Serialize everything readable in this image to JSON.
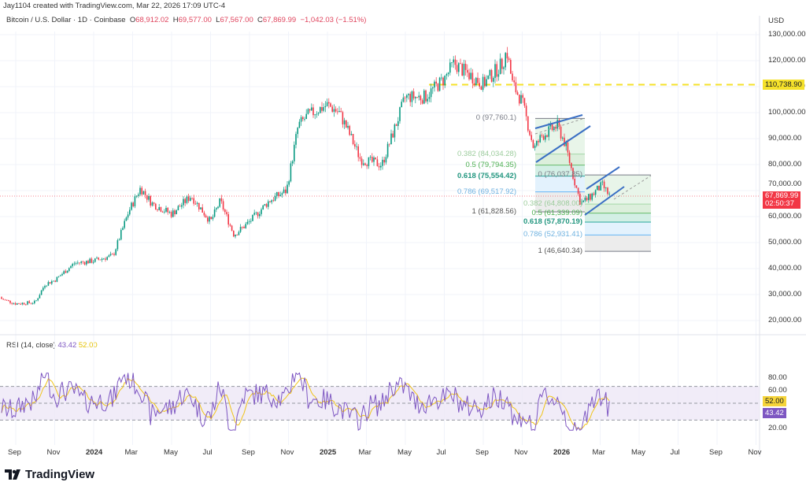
{
  "header": {
    "credit": "Jay1104 created with TradingView.com, Mar 22, 2026 17:09 UTC-4",
    "symbol": "Bitcoin / U.S. Dollar · 1D · Coinbase",
    "o_label": "O",
    "open": "68,912.02",
    "h_label": "H",
    "high": "69,577.00",
    "l_label": "L",
    "low": "67,567.00",
    "c_label": "C",
    "close": "67,869.99",
    "change": "−1,042.03 (−1.51%)"
  },
  "rsi_legend": {
    "label": "RSI (14, close)",
    "rsi": "43.42",
    "ma": "52.00"
  },
  "brand": "TradingView",
  "colors": {
    "up": "#089981",
    "down": "#f23645",
    "rsi": "#7e57c2",
    "rsi_ma": "#f0c419",
    "channel": "#3a6fc4",
    "hline": "#f5e12a"
  },
  "chart_data": {
    "type": "candlestick",
    "title": "Bitcoin / U.S. Dollar · 1D · Coinbase",
    "currency": "USD",
    "ylim": [
      20000,
      130000
    ],
    "y_ticks": [
      "130,000.00",
      "120,000.00",
      "110,000.00",
      "100,000.00",
      "90,000.00",
      "80,000.00",
      "70,000.00",
      "60,000.00",
      "50,000.00",
      "40,000.00",
      "30,000.00",
      "20,000.00"
    ],
    "y_tick_values": [
      130000,
      120000,
      110000,
      100000,
      90000,
      80000,
      70000,
      60000,
      50000,
      40000,
      30000,
      20000
    ],
    "x_ticks": [
      "Sep",
      "Nov",
      "2024",
      "Mar",
      "May",
      "Jul",
      "Sep",
      "Nov",
      "2025",
      "Mar",
      "May",
      "Jul",
      "Sep",
      "Nov",
      "2026",
      "Mar",
      "May",
      "Jul",
      "Sep",
      "Nov"
    ],
    "x_tick_months": [
      1,
      3,
      5,
      7,
      9,
      11,
      13,
      15,
      17,
      19,
      21,
      23,
      25,
      27,
      29,
      31,
      33,
      35,
      37,
      39
    ],
    "price_path": [
      [
        0,
        29000
      ],
      [
        1,
        26500
      ],
      [
        2,
        27000
      ],
      [
        2.5,
        34000
      ],
      [
        3,
        35500
      ],
      [
        4,
        42000
      ],
      [
        5,
        43000
      ],
      [
        6,
        45000
      ],
      [
        6.8,
        62000
      ],
      [
        7.4,
        71000
      ],
      [
        8,
        65000
      ],
      [
        9,
        61000
      ],
      [
        10,
        68000
      ],
      [
        11,
        58000
      ],
      [
        11.5,
        66000
      ],
      [
        12.2,
        53000
      ],
      [
        13,
        58000
      ],
      [
        14,
        66000
      ],
      [
        14.9,
        70000
      ],
      [
        15.5,
        95000
      ],
      [
        16,
        99000
      ],
      [
        17,
        103000
      ],
      [
        17.6,
        100000
      ],
      [
        18,
        94000
      ],
      [
        18.7,
        82000
      ],
      [
        19.8,
        80000
      ],
      [
        20.5,
        95000
      ],
      [
        21,
        106000
      ],
      [
        22,
        106000
      ],
      [
        23,
        113000
      ],
      [
        23.5,
        119000
      ],
      [
        24,
        116000
      ],
      [
        25,
        111000
      ],
      [
        26,
        119000
      ],
      [
        26.2,
        124000
      ],
      [
        26.5,
        111000
      ],
      [
        27,
        104000
      ],
      [
        27.6,
        86000
      ],
      [
        28,
        91000
      ],
      [
        28.8,
        95000
      ],
      [
        29.2,
        88000
      ],
      [
        29.6,
        76000
      ],
      [
        30,
        65000
      ],
      [
        30.4,
        67000
      ],
      [
        30.8,
        70000
      ],
      [
        31.1,
        72000
      ],
      [
        31.5,
        67870
      ]
    ],
    "last_price": "67,869.99",
    "countdown": "02:50:37",
    "horizontal_line": "110,738.90",
    "horizontal_line_value": 110738.9,
    "fib_left": {
      "levels": [
        {
          "ratio": "0",
          "price": "97,760.1",
          "value": 97760.1
        },
        {
          "ratio": "0.382",
          "price": "84,034.28",
          "value": 84034.28
        },
        {
          "ratio": "0.5",
          "price": "79,794.35",
          "value": 79794.35
        },
        {
          "ratio": "0.618",
          "price": "75,554.42",
          "value": 75554.42
        },
        {
          "ratio": "0.786",
          "price": "69,517.92",
          "value": 69517.92
        },
        {
          "ratio": "1",
          "price": "61,828.56",
          "value": 61828.56
        }
      ]
    },
    "fib_right": {
      "levels": [
        {
          "ratio": "0",
          "price": "76,037.85",
          "value": 76037.85
        },
        {
          "ratio": "0.382",
          "price": "64,808.00",
          "value": 64808
        },
        {
          "ratio": "0.5",
          "price": "61,339.09",
          "value": 61339.09
        },
        {
          "ratio": "0.618",
          "price": "57,870.19",
          "value": 57870.19
        },
        {
          "ratio": "0.786",
          "price": "52,931.41",
          "value": 52931.41
        },
        {
          "ratio": "1",
          "price": "46,640.34",
          "value": 46640.34
        }
      ]
    },
    "rsi": {
      "ylim": [
        20,
        80
      ],
      "y_ticks": [
        "80.00",
        "60.00",
        "20.00"
      ],
      "y_tick_values": [
        80,
        60,
        20
      ],
      "band": [
        30,
        70
      ],
      "last": "43.42",
      "ma_last": "52.00"
    }
  }
}
